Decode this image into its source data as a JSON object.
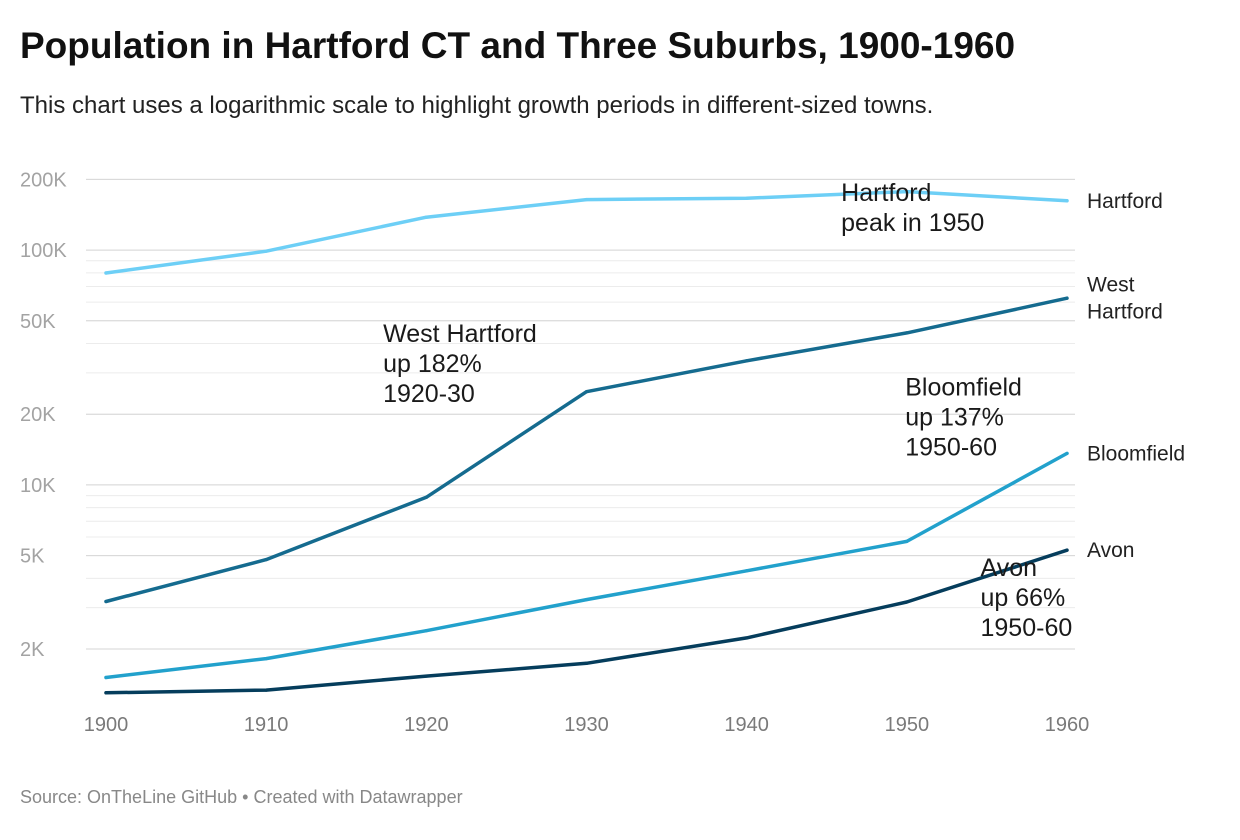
{
  "header": {
    "title": "Population in Hartford CT and Three Suburbs, 1900-1960",
    "subtitle": "This chart uses a logarithmic scale to highlight growth periods in different-sized towns."
  },
  "footer": {
    "source": "Source: OnTheLine GitHub",
    "separator": "•",
    "credit": "Created with Datawrapper"
  },
  "chart_data": {
    "type": "line",
    "title": "Population in Hartford CT and Three Suburbs, 1900-1960",
    "subtitle": "This chart uses a logarithmic scale to highlight growth periods in different-sized towns.",
    "xlabel": "",
    "ylabel": "",
    "y_scale": "log",
    "x": [
      1900,
      1910,
      1920,
      1930,
      1940,
      1950,
      1960
    ],
    "x_ticks": [
      {
        "value": 1900,
        "label": "1900"
      },
      {
        "value": 1910,
        "label": "1910"
      },
      {
        "value": 1920,
        "label": "1920"
      },
      {
        "value": 1930,
        "label": "1930"
      },
      {
        "value": 1940,
        "label": "1940"
      },
      {
        "value": 1950,
        "label": "1950"
      },
      {
        "value": 1960,
        "label": "1960"
      }
    ],
    "ylim": [
      1100,
      215000
    ],
    "y_ticks": [
      {
        "value": 2000,
        "label": "2K"
      },
      {
        "value": 5000,
        "label": "5K"
      },
      {
        "value": 10000,
        "label": "10K"
      },
      {
        "value": 20000,
        "label": "20K"
      },
      {
        "value": 50000,
        "label": "50K"
      },
      {
        "value": 100000,
        "label": "100K"
      },
      {
        "value": 200000,
        "label": "200K"
      }
    ],
    "grid": true,
    "legend": "direct labels at line ends",
    "series": [
      {
        "name": "Hartford",
        "label_lines": [
          "Hartford"
        ],
        "color": "#6dcff6",
        "values": [
          79850,
          98915,
          138036,
          164072,
          166267,
          177397,
          162178
        ]
      },
      {
        "name": "West Hartford",
        "label_lines": [
          "West",
          "Hartford"
        ],
        "color": "#156b8f",
        "values": [
          3186,
          4808,
          8854,
          24941,
          33776,
          44402,
          62382
        ]
      },
      {
        "name": "Bloomfield",
        "label_lines": [
          "Bloomfield"
        ],
        "color": "#22a1cc",
        "values": [
          1513,
          1821,
          2394,
          3247,
          4309,
          5746,
          13613
        ]
      },
      {
        "name": "Avon",
        "label_lines": [
          "Avon"
        ],
        "color": "#053d5c",
        "values": [
          1302,
          1337,
          1534,
          1738,
          2230,
          3171,
          5273
        ]
      }
    ],
    "annotations": [
      {
        "lines": [
          "Hartford",
          "peak in 1950"
        ],
        "x": 1945.9,
        "y": 162000
      },
      {
        "lines": [
          "West Hartford",
          "up 182%",
          "1920-30"
        ],
        "x": 1917.3,
        "y": 40500
      },
      {
        "lines": [
          "Bloomfield",
          "up 137%",
          "1950-60"
        ],
        "x": 1949.9,
        "y": 24000
      },
      {
        "lines": [
          "Avon",
          "up 66%",
          "1950-60"
        ],
        "x": 1954.6,
        "y": 4100
      }
    ]
  }
}
